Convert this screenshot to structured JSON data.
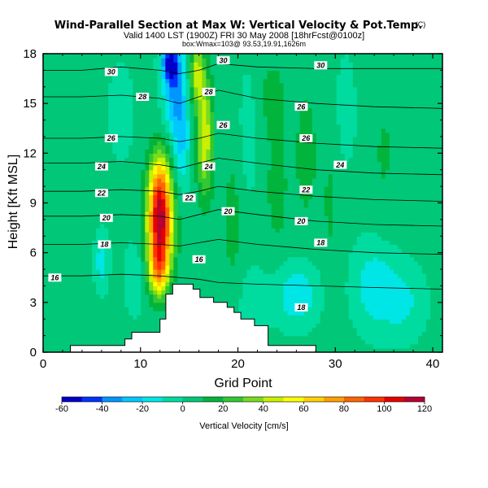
{
  "title": "Wind-Parallel Section at Max W: Vertical Velocity & Pot.Temp.",
  "title_tag": "(C)",
  "subtitle": "Valid 1400 LST (1900Z) FRI 30 May 2008 [18hrFcst@0100z]",
  "subtitle2": "box:Wmax=103@ 93.53,19.91,1626m",
  "chart_data": {
    "type": "heatmap",
    "xlabel": "Grid Point",
    "ylabel": "Height [Kft MSL]",
    "xlim": [
      0,
      41
    ],
    "ylim": [
      0,
      18
    ],
    "x_ticks": [
      "0",
      "10",
      "20",
      "30",
      "40"
    ],
    "y_ticks": [
      "0",
      "3",
      "6",
      "9",
      "12",
      "15",
      "18"
    ],
    "grid": false,
    "colorbar": {
      "label": "Vertical Velocity [cm/s]",
      "ticks": [
        "-60",
        "-40",
        "-20",
        "0",
        "20",
        "40",
        "60",
        "80",
        "100",
        "120"
      ],
      "range": [
        -60,
        120
      ],
      "colors": [
        "#0000c8",
        "#0032ff",
        "#0096ff",
        "#00c8ff",
        "#00e6e6",
        "#00dca0",
        "#00c878",
        "#00b43c",
        "#32c832",
        "#78dc1e",
        "#c8f000",
        "#ffff00",
        "#ffd200",
        "#ffa000",
        "#ff6400",
        "#ff3200",
        "#e60000",
        "#b40032"
      ]
    },
    "theta_contours": [
      {
        "level": 16,
        "y": [
          4.6,
          4.6,
          4.7,
          4.6,
          4.5,
          4.4,
          4.2,
          4.1,
          4.0,
          3.9,
          3.8
        ]
      },
      {
        "level": 18,
        "y": [
          6.5,
          6.5,
          6.6,
          6.5,
          6.4,
          6.6,
          6.8,
          6.5,
          6.2,
          6.0,
          5.9
        ]
      },
      {
        "level": 20,
        "y": [
          8.2,
          8.2,
          8.3,
          8.2,
          8.0,
          8.3,
          8.6,
          8.3,
          7.9,
          7.7,
          7.6
        ]
      },
      {
        "level": 22,
        "y": [
          9.7,
          9.7,
          9.8,
          9.7,
          9.5,
          9.7,
          10.0,
          9.7,
          9.4,
          9.2,
          9.1
        ]
      },
      {
        "level": 24,
        "y": [
          11.4,
          11.4,
          11.5,
          11.3,
          11.1,
          11.4,
          11.7,
          11.4,
          11.0,
          10.8,
          10.7
        ]
      },
      {
        "level": 26,
        "y": [
          12.9,
          12.9,
          13.0,
          12.9,
          12.7,
          12.9,
          13.2,
          12.9,
          12.6,
          12.4,
          12.3
        ]
      },
      {
        "level": 28,
        "y": [
          15.4,
          15.4,
          15.5,
          15.3,
          15.0,
          15.4,
          15.8,
          15.3,
          15.0,
          14.8,
          14.7
        ]
      },
      {
        "level": 30,
        "y": [
          17.0,
          17.0,
          17.2,
          17.0,
          16.8,
          17.0,
          17.4,
          17.2,
          17.1,
          17.1,
          17.1
        ]
      }
    ],
    "theta_contour_x": [
      0,
      4,
      8,
      12,
      14,
      16,
      18,
      22,
      28,
      34,
      41
    ],
    "contour_labels": [
      {
        "text": "16",
        "x": 1.2,
        "y": 4.5
      },
      {
        "text": "18",
        "x": 6.3,
        "y": 6.5
      },
      {
        "text": "20",
        "x": 6.5,
        "y": 8.1
      },
      {
        "text": "22",
        "x": 6.0,
        "y": 9.6
      },
      {
        "text": "24",
        "x": 6.0,
        "y": 11.2
      },
      {
        "text": "26",
        "x": 7.0,
        "y": 12.9
      },
      {
        "text": "28",
        "x": 10.2,
        "y": 15.4
      },
      {
        "text": "30",
        "x": 7.0,
        "y": 16.9
      },
      {
        "text": "16",
        "x": 16.0,
        "y": 5.6
      },
      {
        "text": "20",
        "x": 19.0,
        "y": 8.5
      },
      {
        "text": "22",
        "x": 15.0,
        "y": 9.3
      },
      {
        "text": "24",
        "x": 17.0,
        "y": 11.2
      },
      {
        "text": "26",
        "x": 18.5,
        "y": 13.7
      },
      {
        "text": "28",
        "x": 17.0,
        "y": 15.7
      },
      {
        "text": "30",
        "x": 18.5,
        "y": 17.6
      },
      {
        "text": "18",
        "x": 26.5,
        "y": 2.7
      },
      {
        "text": "18",
        "x": 28.5,
        "y": 6.6
      },
      {
        "text": "20",
        "x": 26.5,
        "y": 7.9
      },
      {
        "text": "22",
        "x": 27.0,
        "y": 9.8
      },
      {
        "text": "24",
        "x": 30.5,
        "y": 11.3
      },
      {
        "text": "26",
        "x": 27.0,
        "y": 12.9
      },
      {
        "text": "26",
        "x": 26.5,
        "y": 14.8
      },
      {
        "text": "30",
        "x": 28.5,
        "y": 17.3
      }
    ],
    "terrain": [
      {
        "x": 0,
        "y": 0
      },
      {
        "x": 2.8,
        "y": 0
      },
      {
        "x": 2.8,
        "y": 0.4
      },
      {
        "x": 5.6,
        "y": 0.4
      },
      {
        "x": 8.4,
        "y": 0.4
      },
      {
        "x": 8.4,
        "y": 0.8
      },
      {
        "x": 9.1,
        "y": 0.8
      },
      {
        "x": 9.1,
        "y": 1.2
      },
      {
        "x": 12.0,
        "y": 1.2
      },
      {
        "x": 12.0,
        "y": 2.0
      },
      {
        "x": 12.6,
        "y": 2.0
      },
      {
        "x": 12.6,
        "y": 3.5
      },
      {
        "x": 13.3,
        "y": 3.5
      },
      {
        "x": 13.3,
        "y": 4.1
      },
      {
        "x": 15.4,
        "y": 4.1
      },
      {
        "x": 15.4,
        "y": 3.8
      },
      {
        "x": 16.1,
        "y": 3.8
      },
      {
        "x": 16.1,
        "y": 3.3
      },
      {
        "x": 17.5,
        "y": 3.3
      },
      {
        "x": 17.5,
        "y": 3.0
      },
      {
        "x": 18.9,
        "y": 3.0
      },
      {
        "x": 18.9,
        "y": 2.7
      },
      {
        "x": 19.6,
        "y": 2.7
      },
      {
        "x": 19.6,
        "y": 2.4
      },
      {
        "x": 20.3,
        "y": 2.4
      },
      {
        "x": 20.3,
        "y": 2.0
      },
      {
        "x": 21.7,
        "y": 2.0
      },
      {
        "x": 21.7,
        "y": 1.6
      },
      {
        "x": 23.1,
        "y": 1.6
      },
      {
        "x": 23.1,
        "y": 0.4
      },
      {
        "x": 23.8,
        "y": 0.4
      },
      {
        "x": 27.0,
        "y": 0.4
      },
      {
        "x": 28.0,
        "y": 0.4
      },
      {
        "x": 28.0,
        "y": 0
      },
      {
        "x": 41,
        "y": 0
      }
    ],
    "w_features": [
      {
        "x": 12.0,
        "y": 7.6,
        "sx": 0.9,
        "sy": 2.1,
        "w": 110
      },
      {
        "x": 12.0,
        "y": 10.5,
        "sx": 0.8,
        "sy": 1.5,
        "w": 35
      },
      {
        "x": 11.8,
        "y": 4.8,
        "sx": 0.7,
        "sy": 1.0,
        "w": 40
      },
      {
        "x": 16.6,
        "y": 13.0,
        "sx": 0.6,
        "sy": 2.5,
        "w": 45
      },
      {
        "x": 15.8,
        "y": 16.8,
        "sx": 0.5,
        "sy": 1.3,
        "w": 40
      },
      {
        "x": 13.5,
        "y": 16.0,
        "sx": 0.8,
        "sy": 2.0,
        "w": -35
      },
      {
        "x": 14.2,
        "y": 12.5,
        "sx": 0.6,
        "sy": 2.0,
        "w": -22
      },
      {
        "x": 13.0,
        "y": 17.5,
        "sx": 0.6,
        "sy": 0.8,
        "w": -45
      },
      {
        "x": 6.0,
        "y": 5.5,
        "sx": 0.5,
        "sy": 1.2,
        "w": -18
      },
      {
        "x": 9.5,
        "y": 4.5,
        "sx": 0.8,
        "sy": 1.5,
        "w": -12
      },
      {
        "x": 19.5,
        "y": 8.0,
        "sx": 0.8,
        "sy": 4.0,
        "w": 10
      },
      {
        "x": 24.0,
        "y": 10.0,
        "sx": 1.0,
        "sy": 3.5,
        "w": 10
      },
      {
        "x": 27.0,
        "y": 12.0,
        "sx": 0.8,
        "sy": 3.0,
        "w": 12
      },
      {
        "x": 29.5,
        "y": 9.0,
        "sx": 0.8,
        "sy": 4.0,
        "w": 8
      },
      {
        "x": 23.5,
        "y": 15.5,
        "sx": 1.0,
        "sy": 1.5,
        "w": 10
      },
      {
        "x": 35.0,
        "y": 12.0,
        "sx": 1.0,
        "sy": 3.0,
        "w": 8
      },
      {
        "x": 21.5,
        "y": 3.0,
        "sx": 1.2,
        "sy": 1.5,
        "w": -10
      },
      {
        "x": 26.0,
        "y": 3.5,
        "sx": 1.6,
        "sy": 1.3,
        "w": -22
      },
      {
        "x": 34.0,
        "y": 4.0,
        "sx": 1.5,
        "sy": 1.8,
        "w": -20
      },
      {
        "x": 37.0,
        "y": 3.0,
        "sx": 1.5,
        "sy": 1.5,
        "w": -15
      },
      {
        "x": 21.0,
        "y": 13.0,
        "sx": 0.8,
        "sy": 3.0,
        "w": -8
      },
      {
        "x": 31.0,
        "y": 14.5,
        "sx": 0.8,
        "sy": 2.5,
        "w": -8
      },
      {
        "x": 8.0,
        "y": 14.5,
        "sx": 1.2,
        "sy": 2.5,
        "w": -6
      }
    ]
  }
}
